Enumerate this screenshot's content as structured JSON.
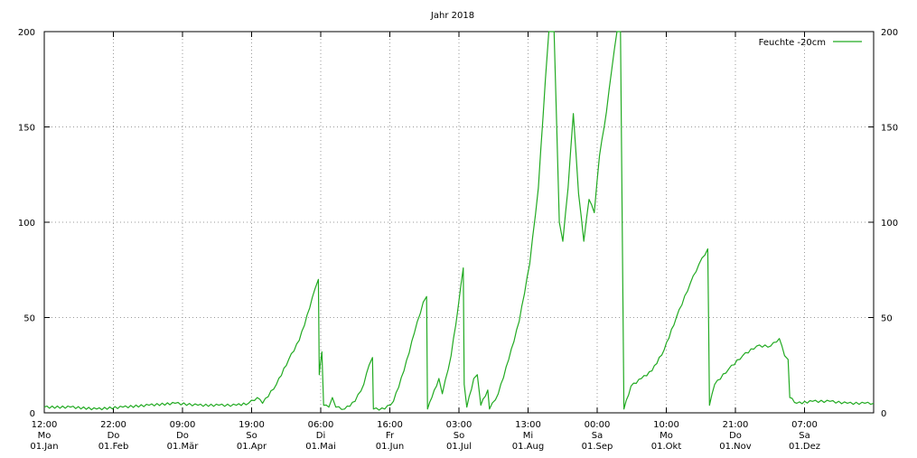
{
  "chart_data": {
    "type": "line",
    "title": "Jahr 2018",
    "legend": {
      "label": "Feuchte -20cm",
      "placement": "top-right"
    },
    "colors": {
      "series": "#22aa22",
      "grid": "#9a9a9a",
      "axis": "#000000"
    },
    "y_range": [
      0,
      200
    ],
    "y_ticks": [
      "0",
      "50",
      "100",
      "150",
      "200"
    ],
    "grid": true,
    "x_ticks": [
      {
        "time": "12:00",
        "day": "Mo",
        "date": "01.Jan"
      },
      {
        "time": "22:00",
        "day": "Do",
        "date": "01.Feb"
      },
      {
        "time": "09:00",
        "day": "Do",
        "date": "01.Mär"
      },
      {
        "time": "19:00",
        "day": "So",
        "date": "01.Apr"
      },
      {
        "time": "06:00",
        "day": "Di",
        "date": "01.Mai"
      },
      {
        "time": "16:00",
        "day": "Fr",
        "date": "01.Jun"
      },
      {
        "time": "03:00",
        "day": "So",
        "date": "01.Jul"
      },
      {
        "time": "13:00",
        "day": "Mi",
        "date": "01.Aug"
      },
      {
        "time": "00:00",
        "day": "Sa",
        "date": "01.Sep"
      },
      {
        "time": "10:00",
        "day": "Mo",
        "date": "01.Okt"
      },
      {
        "time": "21:00",
        "day": "Do",
        "date": "01.Nov"
      },
      {
        "time": "07:00",
        "day": "Sa",
        "date": "01.Dez"
      }
    ],
    "series": [
      {
        "name": "Feuchte -20cm",
        "points": [
          [
            0,
            3
          ],
          [
            15,
            3
          ],
          [
            30,
            2
          ],
          [
            45,
            3
          ],
          [
            60,
            4
          ],
          [
            75,
            5
          ],
          [
            88,
            4
          ],
          [
            100,
            4
          ],
          [
            110,
            4
          ],
          [
            117,
            5
          ],
          [
            122,
            8
          ],
          [
            125,
            5
          ],
          [
            133,
            15
          ],
          [
            140,
            28
          ],
          [
            146,
            38
          ],
          [
            152,
            55
          ],
          [
            155,
            65
          ],
          [
            157,
            70
          ],
          [
            157.5,
            20
          ],
          [
            158,
            25
          ],
          [
            159,
            32
          ],
          [
            160,
            4
          ],
          [
            163,
            3
          ],
          [
            165,
            8
          ],
          [
            167,
            3
          ],
          [
            172,
            2
          ],
          [
            178,
            6
          ],
          [
            183,
            15
          ],
          [
            186,
            25
          ],
          [
            188,
            29
          ],
          [
            188.5,
            2
          ],
          [
            195,
            2
          ],
          [
            200,
            6
          ],
          [
            206,
            22
          ],
          [
            212,
            42
          ],
          [
            217,
            58
          ],
          [
            219,
            61
          ],
          [
            219.5,
            2
          ],
          [
            222,
            8
          ],
          [
            226,
            18
          ],
          [
            228,
            10
          ],
          [
            233,
            30
          ],
          [
            237,
            55
          ],
          [
            240,
            76
          ],
          [
            240.5,
            15
          ],
          [
            242,
            3
          ],
          [
            246,
            18
          ],
          [
            248,
            20
          ],
          [
            250,
            4
          ],
          [
            254,
            12
          ],
          [
            255,
            2
          ],
          [
            260,
            10
          ],
          [
            266,
            28
          ],
          [
            272,
            48
          ],
          [
            278,
            78
          ],
          [
            283,
            118
          ],
          [
            287,
            175
          ],
          [
            289,
            200
          ],
          [
            292,
            200
          ],
          [
            295,
            100
          ],
          [
            297,
            90
          ],
          [
            300,
            118
          ],
          [
            303,
            157
          ],
          [
            306,
            115
          ],
          [
            309,
            90
          ],
          [
            312,
            112
          ],
          [
            315,
            105
          ],
          [
            318,
            135
          ],
          [
            322,
            158
          ],
          [
            325,
            180
          ],
          [
            328,
            200
          ],
          [
            330,
            200
          ],
          [
            331,
            100
          ],
          [
            332,
            2
          ],
          [
            336,
            14
          ],
          [
            342,
            18
          ],
          [
            348,
            22
          ],
          [
            355,
            33
          ],
          [
            362,
            50
          ],
          [
            370,
            68
          ],
          [
            375,
            78
          ],
          [
            380,
            86
          ],
          [
            380.5,
            45
          ],
          [
            381,
            4
          ],
          [
            384,
            15
          ],
          [
            392,
            23
          ],
          [
            400,
            30
          ],
          [
            408,
            35
          ],
          [
            416,
            35
          ],
          [
            421,
            39
          ],
          [
            424,
            30
          ],
          [
            426,
            28
          ],
          [
            427,
            8
          ],
          [
            431,
            5
          ],
          [
            440,
            6
          ],
          [
            450,
            6
          ],
          [
            460,
            5
          ],
          [
            470,
            5
          ],
          [
            475,
            5
          ]
        ]
      }
    ],
    "x_domain": [
      0,
      475
    ]
  }
}
